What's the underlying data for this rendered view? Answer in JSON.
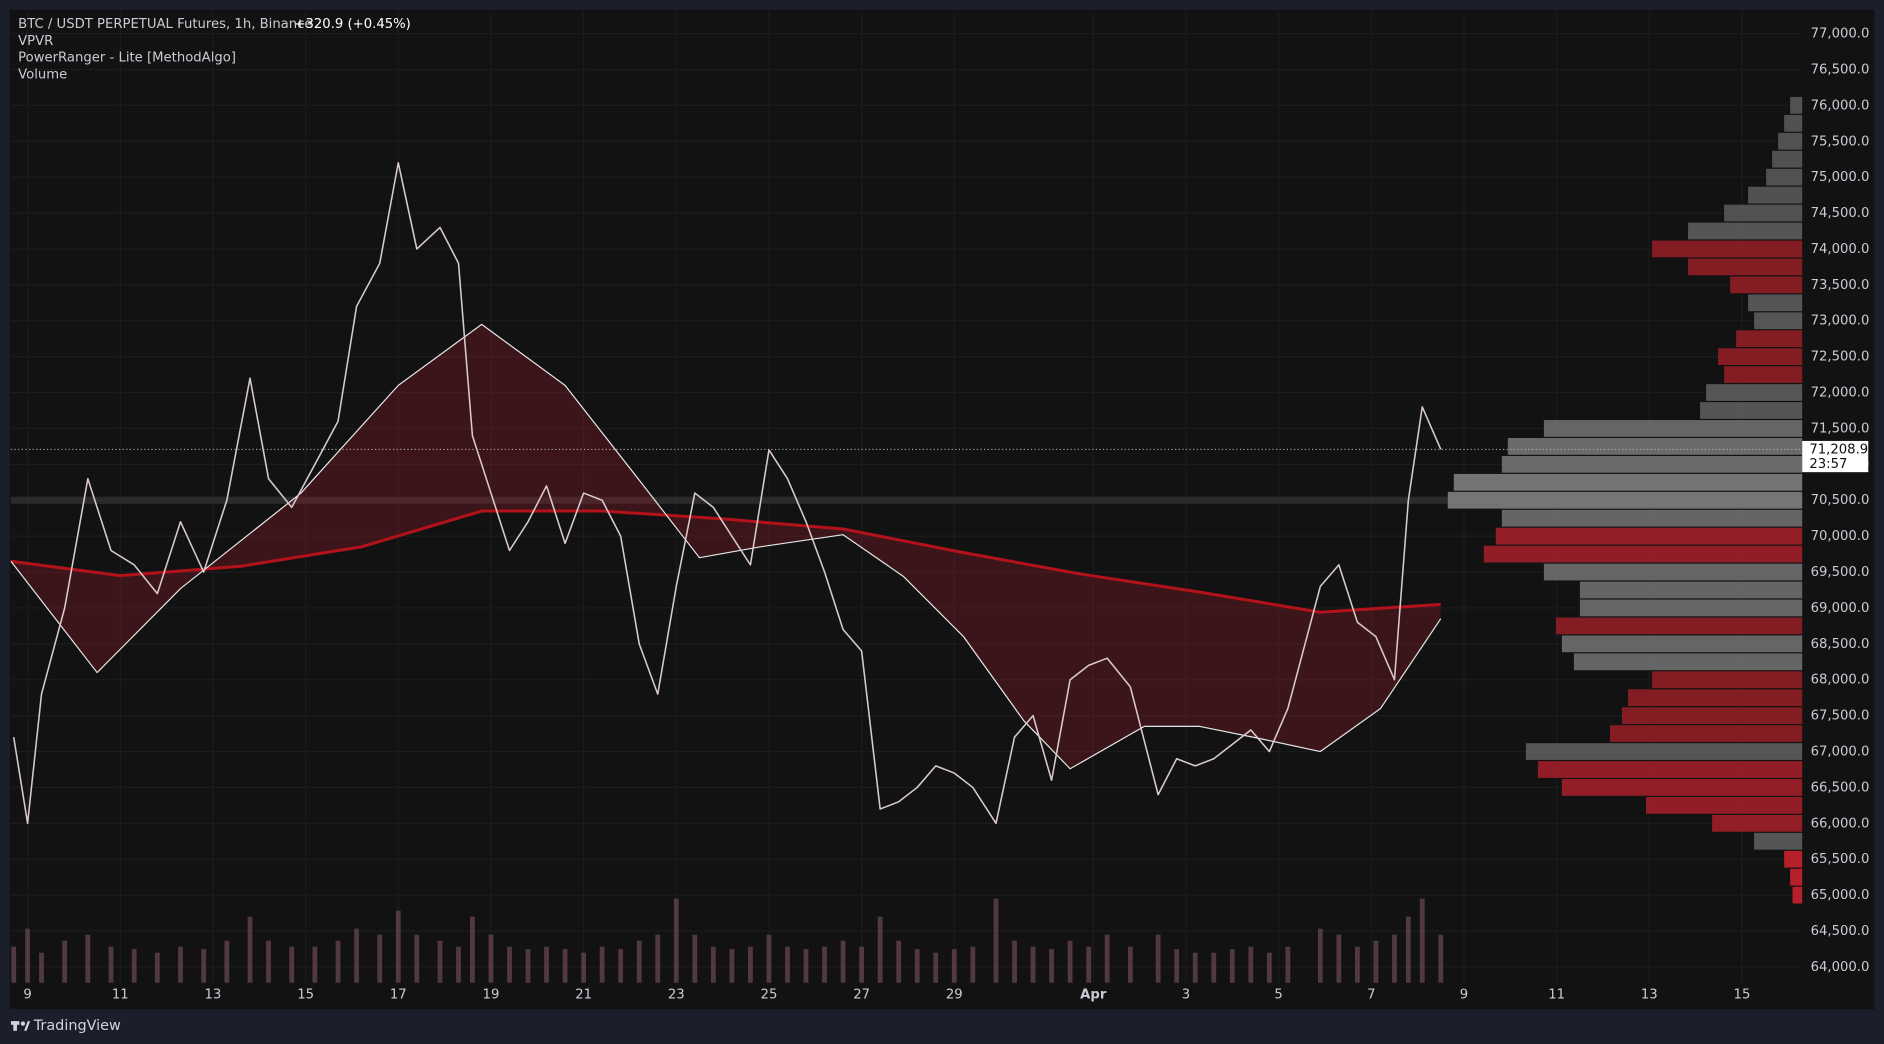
{
  "chart_data": {
    "type": "line",
    "title": "BTC / USDT PERPETUAL Futures, 1h, Binance",
    "change": "+320.9 (+0.45%)",
    "indicators": [
      "VPVR",
      "PowerRanger - Lite [MethodAlgo]",
      "Volume"
    ],
    "brand": "TradingView",
    "countdown": "23:57",
    "last_price": {
      "value": 71208.9,
      "label": "71,208.9"
    },
    "xlim": [
      8.64,
      47.3
    ],
    "xticks": [
      9,
      11,
      13,
      15,
      17,
      19,
      21,
      23,
      25,
      27,
      29,
      {
        "value": 32,
        "label": "Apr"
      },
      {
        "value": 34,
        "label": "3"
      },
      {
        "value": 36,
        "label": "5"
      },
      {
        "value": 38,
        "label": "7"
      },
      {
        "value": 40,
        "label": "9"
      },
      {
        "value": 42,
        "label": "11"
      },
      {
        "value": 44,
        "label": "13"
      },
      {
        "value": 46,
        "label": "15"
      }
    ],
    "ylim": [
      63780,
      77300
    ],
    "yticks": [
      {
        "value": 64000,
        "label": "64,000.0"
      },
      {
        "value": 64500,
        "label": "64,500.0"
      },
      {
        "value": 65000,
        "label": "65,000.0"
      },
      {
        "value": 65500,
        "label": "65,500.0"
      },
      {
        "value": 66000,
        "label": "66,000.0"
      },
      {
        "value": 66500,
        "label": "66,500.0"
      },
      {
        "value": 67000,
        "label": "67,000.0"
      },
      {
        "value": 67500,
        "label": "67,500.0"
      },
      {
        "value": 68000,
        "label": "68,000.0"
      },
      {
        "value": 68500,
        "label": "68,500.0"
      },
      {
        "value": 69000,
        "label": "69,000.0"
      },
      {
        "value": 69500,
        "label": "69,500.0"
      },
      {
        "value": 70000,
        "label": "70,000.0"
      },
      {
        "value": 70500,
        "label": "70,500.0"
      },
      {
        "value": 71000,
        "label": "71,000.0"
      },
      {
        "value": 71500,
        "label": "71,500.0"
      },
      {
        "value": 72000,
        "label": "72,000.0"
      },
      {
        "value": 72500,
        "label": "72,500.0"
      },
      {
        "value": 73000,
        "label": "73,000.0"
      },
      {
        "value": 73500,
        "label": "73,500.0"
      },
      {
        "value": 74000,
        "label": "74,000.0"
      },
      {
        "value": 74500,
        "label": "74,500.0"
      },
      {
        "value": 75000,
        "label": "75,000.0"
      },
      {
        "value": 75500,
        "label": "75,500.0"
      },
      {
        "value": 76000,
        "label": "76,000.0"
      },
      {
        "value": 76500,
        "label": "76,500.0"
      },
      {
        "value": 77000,
        "label": "77,000.0"
      }
    ],
    "grid": true,
    "series": [
      {
        "name": "Price",
        "color": "#d9c9cd",
        "x": [
          8.7,
          9.0,
          9.3,
          9.8,
          10.3,
          10.8,
          11.3,
          11.8,
          12.3,
          12.8,
          13.3,
          13.8,
          14.2,
          14.7,
          15.2,
          15.7,
          16.1,
          16.6,
          17.0,
          17.4,
          17.9,
          18.3,
          18.6,
          19.0,
          19.4,
          19.8,
          20.2,
          20.6,
          21.0,
          21.4,
          21.8,
          22.2,
          22.6,
          23.0,
          23.4,
          23.8,
          24.2,
          24.6,
          25.0,
          25.4,
          25.8,
          26.2,
          26.6,
          27.0,
          27.4,
          27.8,
          28.2,
          28.6,
          29.0,
          29.4,
          29.9,
          30.3,
          30.7,
          31.1,
          31.5,
          31.9,
          32.3,
          32.8,
          33.4,
          33.8,
          34.2,
          34.6,
          35.0,
          35.4,
          35.8,
          36.2,
          36.9,
          37.3,
          37.7,
          38.1,
          38.5,
          38.8,
          39.1,
          39.5
        ],
        "values": [
          67200,
          66000,
          67800,
          69000,
          70800,
          69800,
          69600,
          69200,
          70200,
          69500,
          70500,
          72200,
          70800,
          70400,
          71000,
          71600,
          73200,
          73800,
          75200,
          74000,
          74300,
          73800,
          71400,
          70600,
          69800,
          70200,
          70700,
          69900,
          70600,
          70500,
          70000,
          68500,
          67800,
          69300,
          70600,
          70400,
          70000,
          69600,
          71200,
          70800,
          70200,
          69500,
          68700,
          68400,
          66200,
          66300,
          66500,
          66800,
          66700,
          66500,
          66000,
          67200,
          67500,
          66600,
          68000,
          68200,
          68300,
          67900,
          66400,
          66900,
          66800,
          66900,
          67100,
          67300,
          67000,
          67600,
          69300,
          69600,
          68800,
          68600,
          68000,
          70500,
          71800,
          71208.9
        ]
      },
      {
        "name": "MA fast",
        "color": "#e6e6e6",
        "x": [
          8.64,
          10.5,
          12.3,
          14.9,
          17.0,
          18.8,
          20.6,
          22.2,
          23.5,
          24.8,
          26.6,
          27.9,
          29.2,
          30.5,
          31.5,
          33.1,
          34.3,
          35.6,
          36.9,
          38.2,
          39.5
        ],
        "values": [
          69650,
          68100,
          69270,
          70600,
          72100,
          72950,
          72100,
          70780,
          69700,
          69850,
          70020,
          69440,
          68600,
          67430,
          66760,
          67350,
          67350,
          67180,
          67000,
          67600,
          68850
        ]
      },
      {
        "name": "MA slow",
        "color": "#b3121a",
        "x": [
          8.64,
          11.0,
          13.6,
          16.2,
          18.8,
          21.4,
          24.0,
          26.6,
          29.2,
          31.75,
          34.3,
          36.9,
          39.5
        ],
        "values": [
          69650,
          69450,
          69580,
          69850,
          70350,
          70350,
          70240,
          70100,
          69770,
          69470,
          69220,
          68940,
          69050
        ]
      }
    ],
    "volume": {
      "color": "#6b4a52",
      "values": [
        30,
        45,
        25,
        35,
        40,
        30,
        28,
        25,
        30,
        28,
        35,
        55,
        35,
        30,
        30,
        35,
        45,
        40,
        60,
        40,
        35,
        30,
        55,
        40,
        30,
        28,
        30,
        28,
        25,
        30,
        28,
        35,
        40,
        70,
        40,
        30,
        28,
        30,
        40,
        30,
        28,
        30,
        35,
        30,
        55,
        35,
        28,
        25,
        28,
        30,
        70,
        35,
        30,
        28,
        35,
        30,
        40,
        30,
        40,
        28,
        25,
        25,
        28,
        30,
        25,
        30,
        45,
        40,
        30,
        35,
        40,
        55,
        70,
        40
      ]
    },
    "profile": {
      "levels": [
        76000,
        75750,
        75500,
        75250,
        75000,
        74750,
        74500,
        74250,
        74000,
        73750,
        73500,
        73250,
        73000,
        72750,
        72500,
        72250,
        72000,
        71750,
        71500,
        71250,
        71000,
        70750,
        70500,
        70250,
        70000,
        69750,
        69500,
        69250,
        69000,
        68750,
        68500,
        68250,
        68000,
        67750,
        67500,
        67250,
        67000,
        66750,
        66500,
        66250,
        66000,
        65750,
        65500,
        65250,
        65000
      ],
      "values": [
        10,
        15,
        20,
        25,
        30,
        45,
        65,
        95,
        125,
        95,
        60,
        45,
        40,
        55,
        70,
        65,
        80,
        85,
        215,
        245,
        250,
        290,
        295,
        250,
        255,
        265,
        215,
        185,
        185,
        205,
        200,
        190,
        125,
        145,
        150,
        160,
        230,
        220,
        200,
        130,
        75,
        40,
        15,
        10,
        8
      ],
      "colors": [
        "#555",
        "#555",
        "#555",
        "#555",
        "#555",
        "#555",
        "#555",
        "#5a5a5a",
        "#8a1d24",
        "#8a1d24",
        "#8a1d24",
        "#5a5a5a",
        "#5a5a5a",
        "#8a1d24",
        "#8a1d24",
        "#8a1d24",
        "#5a5a5a",
        "#5a5a5a",
        "#6a6a6a",
        "#707070",
        "#707070",
        "#7a7a7a",
        "#7a7a7a",
        "#6a6a6a",
        "#9b1f27",
        "#9b1f27",
        "#6a6a6a",
        "#6a6a6a",
        "#6a6a6a",
        "#8a1d24",
        "#6a6a6a",
        "#6a6a6a",
        "#8a1d24",
        "#8a1d24",
        "#8a1d24",
        "#8a1d24",
        "#5a5a5a",
        "#9b1f27",
        "#9b1f27",
        "#9b1f27",
        "#9b1f27",
        "#5a5a5a",
        "#c0222b",
        "#c0222b",
        "#c0222b"
      ]
    }
  }
}
